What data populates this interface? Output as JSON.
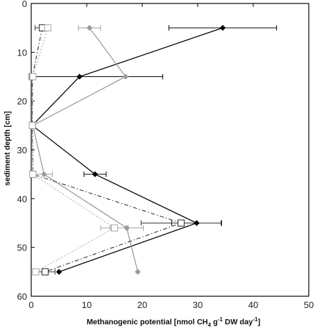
{
  "chart_data": {
    "type": "line",
    "orientation": "depth-profile",
    "xlabel": {
      "prefix": "Methanogenic potential  [nmol CH",
      "ch4_sub": "4",
      "mid": "  g",
      "g_sup": "-1",
      "dw": " DW  day",
      "day_sup": "-1",
      "suffix": "]"
    },
    "ylabel": "sediment depth [cm]",
    "xlim": [
      0,
      50
    ],
    "ylim": [
      0,
      60
    ],
    "y_inverted": true,
    "x_ticks": [
      0,
      10,
      20,
      30,
      40,
      50
    ],
    "y_ticks": [
      0,
      10,
      20,
      30,
      40,
      50,
      60
    ],
    "x_tick_labels": [
      "0",
      "10",
      "20",
      "30",
      "40",
      "50"
    ],
    "y_tick_labels": [
      "0",
      "10",
      "20",
      "30",
      "40",
      "50",
      "60"
    ],
    "grid": false,
    "legend": "none",
    "series": [
      {
        "marker": "diamond",
        "color": "#000000",
        "line": "solid",
        "points": [
          {
            "x": 34.5,
            "y": 5,
            "err": 9.7
          },
          {
            "x": 8.7,
            "y": 15,
            "err": 0
          },
          {
            "x": 0.2,
            "y": 25,
            "err": 0
          },
          {
            "x": 11.5,
            "y": 35,
            "err": 2.0
          },
          {
            "x": 29.8,
            "y": 45,
            "err": 4.5
          },
          {
            "x": 5.0,
            "y": 55,
            "err": 0
          }
        ]
      },
      {
        "marker": "diamond",
        "color": "#9a9a9a",
        "line": "solid",
        "points": [
          {
            "x": 10.5,
            "y": 5,
            "err": 2.0
          },
          {
            "x": 17.0,
            "y": 15,
            "err": 0
          },
          {
            "x": 0.3,
            "y": 25,
            "err": 0
          },
          {
            "x": 2.3,
            "y": 35,
            "err": 1.5
          },
          {
            "x": 17.2,
            "y": 46,
            "err": 3.0
          },
          {
            "x": 19.2,
            "y": 55,
            "err": 0
          }
        ]
      },
      {
        "marker": "square-open",
        "color": "#333333",
        "line": "dashdot",
        "points": [
          {
            "x": 2.0,
            "y": 5,
            "err": 1.3
          },
          {
            "x": 0.2,
            "y": 15,
            "err": 0
          },
          {
            "x": 0.2,
            "y": 25,
            "err": 0
          },
          {
            "x": 0.3,
            "y": 35,
            "err": 0
          },
          {
            "x": 27.0,
            "y": 45,
            "err": 7.2
          },
          {
            "x": 2.5,
            "y": 55,
            "err": 1.8
          }
        ]
      },
      {
        "marker": "square-open",
        "color": "#aaaaaa",
        "line": "dotted",
        "points": [
          {
            "x": 3.0,
            "y": 5,
            "err": 0
          },
          {
            "x": 0.3,
            "y": 15,
            "err": 0
          },
          {
            "x": 0.2,
            "y": 25,
            "err": 0
          },
          {
            "x": 0.3,
            "y": 35,
            "err": 0
          },
          {
            "x": 15.0,
            "y": 46,
            "err": 2.5
          },
          {
            "x": 0.8,
            "y": 55,
            "err": 0
          }
        ]
      }
    ],
    "extra_error_bars": [
      {
        "x": 8.7,
        "y": 15,
        "err": 15.0
      }
    ]
  }
}
